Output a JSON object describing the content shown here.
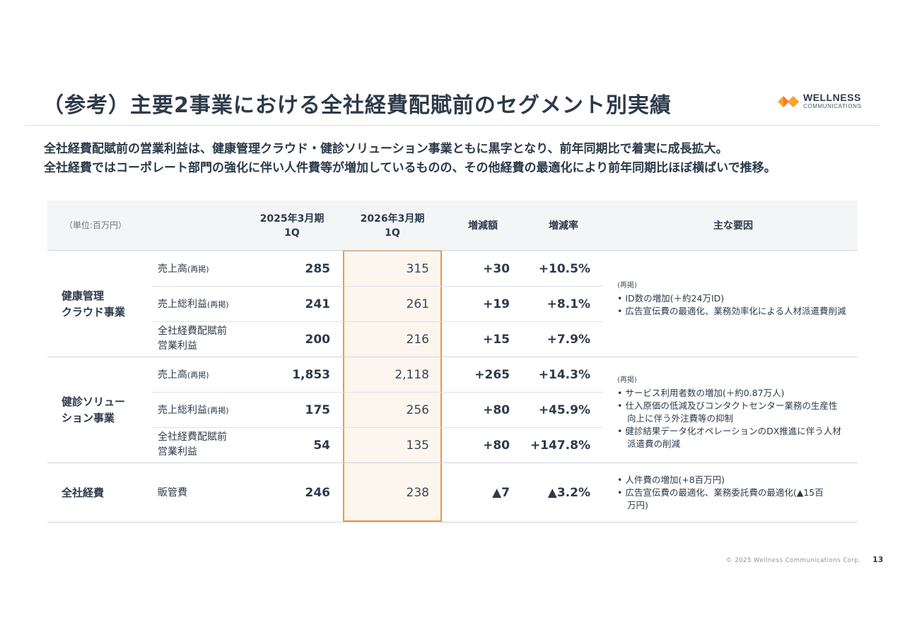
{
  "title": "（参考）主要2事業における全社経費配賦前のセグメント別実績",
  "logo": {
    "brand": "WELLNESS",
    "sub": "COMMUNICATIONS",
    "colors": [
      "#f7a623",
      "#f0782d"
    ]
  },
  "lead": [
    "全社経費配賦前の営業利益は、健康管理クラウド・健診ソリューション事業ともに黒字となり、前年同期比で着実に成長拡大。",
    "全社経費ではコーポレート部門の強化に伴い人件費等が増加しているものの、その他経費の最適化により前年同期比ほぼ横ばいで推移。"
  ],
  "table": {
    "unit": "（単位:百万円）",
    "headers": {
      "prev_line1": "2025年3月期",
      "prev_line2": "1Q",
      "curr_line1": "2026年3月期",
      "curr_line2": "1Q",
      "change": "増減額",
      "rate": "増減率",
      "factors": "主な要因"
    },
    "segments": [
      {
        "name_line1": "健康管理",
        "name_line2": "クラウド事業",
        "rows": [
          {
            "item_line1": "売上高",
            "item_note": "(再掲)",
            "item_line2": "",
            "prev": "285",
            "curr": "315",
            "change": "+30",
            "rate": "+10.5%"
          },
          {
            "item_line1": "売上総利益",
            "item_note": "(再掲)",
            "item_line2": "",
            "prev": "241",
            "curr": "261",
            "change": "+19",
            "rate": "+8.1%"
          },
          {
            "item_line1": "全社経費配賦前",
            "item_note": "",
            "item_line2": "営業利益",
            "prev": "200",
            "curr": "216",
            "change": "+15",
            "rate": "+7.9%"
          }
        ],
        "factors": {
          "tag": "(再掲)",
          "items": [
            "• ID数の増加(＋約24万ID)",
            "• 広告宣伝費の最適化、業務効率化による人材派遣費削減"
          ]
        }
      },
      {
        "name_line1": "健診ソリュー",
        "name_line2": "ション事業",
        "rows": [
          {
            "item_line1": "売上高",
            "item_note": "(再掲)",
            "item_line2": "",
            "prev": "1,853",
            "curr": "2,118",
            "change": "+265",
            "rate": "+14.3%"
          },
          {
            "item_line1": "売上総利益",
            "item_note": "(再掲)",
            "item_line2": "",
            "prev": "175",
            "curr": "256",
            "change": "+80",
            "rate": "+45.9%"
          },
          {
            "item_line1": "全社経費配賦前",
            "item_note": "",
            "item_line2": "営業利益",
            "prev": "54",
            "curr": "135",
            "change": "+80",
            "rate": "+147.8%"
          }
        ],
        "factors": {
          "tag": "(再掲)",
          "items": [
            "• サービス利用者数の増加(＋約0.87万人)",
            "• 仕入原価の低減及びコンタクトセンター業務の生産性向上に伴う外注費等の抑制",
            "• 健診結果データ化オペレーションのDX推進に伴う人材派遣費の削減"
          ]
        }
      },
      {
        "name_line1": "全社経費",
        "name_line2": "",
        "rows": [
          {
            "item_line1": "販管費",
            "item_note": "",
            "item_line2": "",
            "prev": "246",
            "curr": "238",
            "change": "▲7",
            "rate": "▲3.2%"
          }
        ],
        "factors": {
          "tag": "",
          "items": [
            "• 人件費の増加(+8百万円)",
            "• 広告宣伝費の最適化、業務委託費の最適化(▲15百万円)"
          ]
        }
      }
    ]
  },
  "footer": {
    "copyright": "© 2025 Wellness Communications Corp.",
    "page": "13"
  }
}
